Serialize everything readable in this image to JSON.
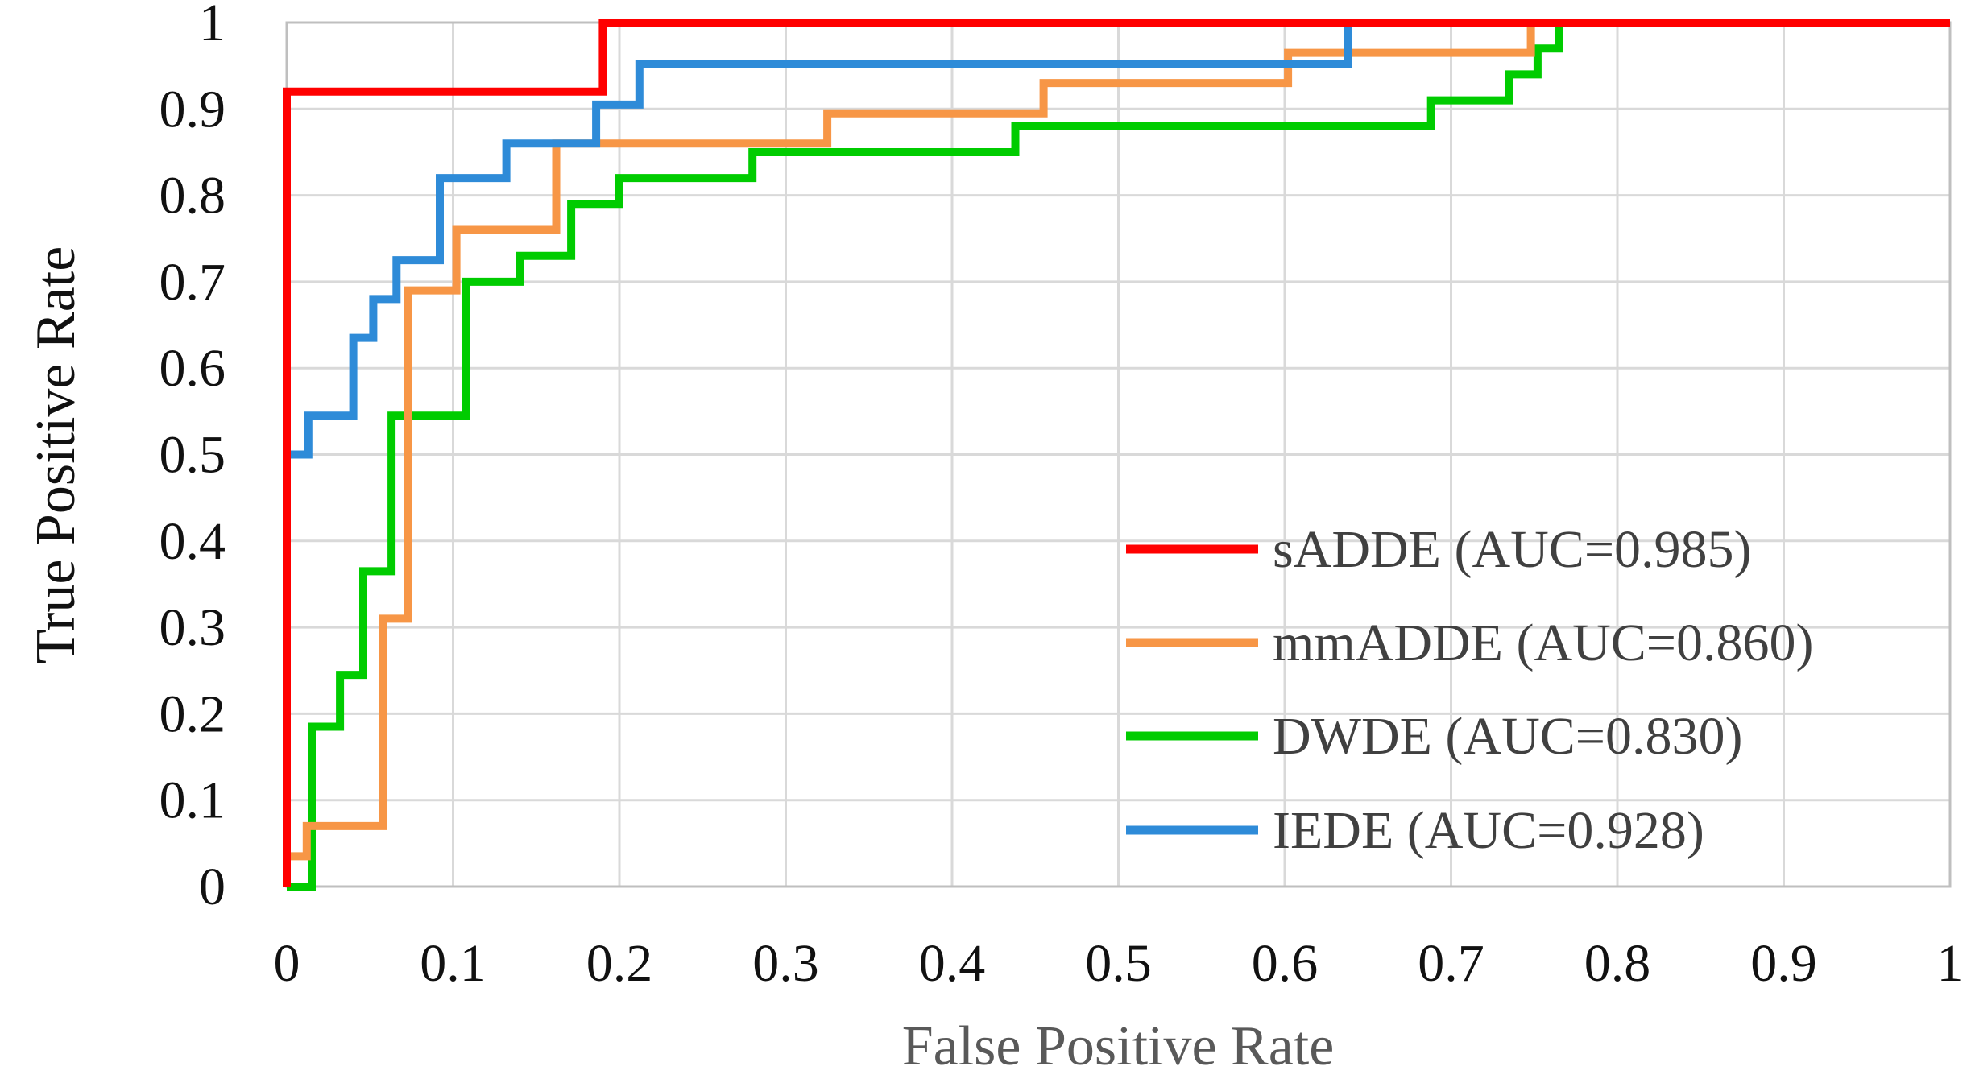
{
  "chart_data": {
    "type": "line",
    "xlabel": "False Positive Rate",
    "ylabel": "True Positive Rate",
    "xlim": [
      0,
      1
    ],
    "ylim": [
      0,
      1
    ],
    "x_ticks": [
      "0",
      "0.1",
      "0.2",
      "0.3",
      "0.4",
      "0.5",
      "0.6",
      "0.7",
      "0.8",
      "0.9",
      "1"
    ],
    "y_ticks": [
      "0",
      "0.1",
      "0.2",
      "0.3",
      "0.4",
      "0.5",
      "0.6",
      "0.7",
      "0.8",
      "0.9",
      "1"
    ],
    "grid": true,
    "legend_position": "bottom-right",
    "series": [
      {
        "name": "sADDE (AUC=0.985)",
        "color": "#ff0000",
        "points": [
          [
            0,
            0
          ],
          [
            0,
            0.92
          ],
          [
            0.19,
            0.92
          ],
          [
            0.19,
            1.0
          ],
          [
            1.0,
            1.0
          ]
        ]
      },
      {
        "name": "mmADDE (AUC=0.860)",
        "color": "#f79646",
        "points": [
          [
            0,
            0
          ],
          [
            0,
            0.035
          ],
          [
            0.012,
            0.035
          ],
          [
            0.012,
            0.07
          ],
          [
            0.058,
            0.07
          ],
          [
            0.058,
            0.31
          ],
          [
            0.073,
            0.31
          ],
          [
            0.073,
            0.69
          ],
          [
            0.102,
            0.69
          ],
          [
            0.102,
            0.76
          ],
          [
            0.162,
            0.76
          ],
          [
            0.162,
            0.86
          ],
          [
            0.325,
            0.86
          ],
          [
            0.325,
            0.895
          ],
          [
            0.455,
            0.895
          ],
          [
            0.455,
            0.93
          ],
          [
            0.602,
            0.93
          ],
          [
            0.602,
            0.965
          ],
          [
            0.748,
            0.965
          ],
          [
            0.748,
            1.0
          ],
          [
            1.0,
            1.0
          ]
        ]
      },
      {
        "name": "DWDE (AUC=0.830)",
        "color": "#00cc00",
        "points": [
          [
            0,
            0
          ],
          [
            0.015,
            0
          ],
          [
            0.015,
            0.185
          ],
          [
            0.032,
            0.185
          ],
          [
            0.032,
            0.245
          ],
          [
            0.046,
            0.245
          ],
          [
            0.046,
            0.365
          ],
          [
            0.063,
            0.365
          ],
          [
            0.063,
            0.545
          ],
          [
            0.108,
            0.545
          ],
          [
            0.108,
            0.7
          ],
          [
            0.14,
            0.7
          ],
          [
            0.14,
            0.73
          ],
          [
            0.171,
            0.73
          ],
          [
            0.171,
            0.79
          ],
          [
            0.2,
            0.79
          ],
          [
            0.2,
            0.82
          ],
          [
            0.28,
            0.82
          ],
          [
            0.28,
            0.85
          ],
          [
            0.438,
            0.85
          ],
          [
            0.438,
            0.88
          ],
          [
            0.688,
            0.88
          ],
          [
            0.688,
            0.91
          ],
          [
            0.735,
            0.91
          ],
          [
            0.735,
            0.94
          ],
          [
            0.752,
            0.94
          ],
          [
            0.752,
            0.97
          ],
          [
            0.765,
            0.97
          ],
          [
            0.765,
            1.0
          ],
          [
            1.0,
            1.0
          ]
        ]
      },
      {
        "name": "IEDE (AUC=0.928)",
        "color": "#2e8bd8",
        "points": [
          [
            0,
            0
          ],
          [
            0,
            0.5
          ],
          [
            0.013,
            0.5
          ],
          [
            0.013,
            0.545
          ],
          [
            0.04,
            0.545
          ],
          [
            0.04,
            0.635
          ],
          [
            0.052,
            0.635
          ],
          [
            0.052,
            0.68
          ],
          [
            0.066,
            0.68
          ],
          [
            0.066,
            0.725
          ],
          [
            0.092,
            0.725
          ],
          [
            0.092,
            0.82
          ],
          [
            0.132,
            0.82
          ],
          [
            0.132,
            0.86
          ],
          [
            0.186,
            0.86
          ],
          [
            0.186,
            0.905
          ],
          [
            0.212,
            0.905
          ],
          [
            0.212,
            0.952
          ],
          [
            0.638,
            0.952
          ],
          [
            0.638,
            1.0
          ],
          [
            1.0,
            1.0
          ]
        ]
      }
    ]
  }
}
